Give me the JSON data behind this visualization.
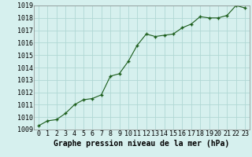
{
  "x": [
    0,
    1,
    2,
    3,
    4,
    5,
    6,
    7,
    8,
    9,
    10,
    11,
    12,
    13,
    14,
    15,
    16,
    17,
    18,
    19,
    20,
    21,
    22,
    23
  ],
  "y": [
    1009.3,
    1009.7,
    1009.8,
    1010.3,
    1011.0,
    1011.4,
    1011.5,
    1011.8,
    1013.3,
    1013.5,
    1014.5,
    1015.8,
    1016.7,
    1016.5,
    1016.6,
    1016.7,
    1017.2,
    1017.5,
    1018.1,
    1018.0,
    1018.0,
    1018.2,
    1019.0,
    1018.8
  ],
  "line_color": "#1a5c1a",
  "marker": "+",
  "bg_color": "#d6f0ee",
  "grid_color": "#b0d8d4",
  "xlabel": "Graphe pression niveau de la mer (hPa)",
  "xlabel_fontsize": 7,
  "tick_fontsize": 6,
  "ylim": [
    1009,
    1019
  ],
  "xlim": [
    -0.5,
    23.5
  ],
  "yticks": [
    1009,
    1010,
    1011,
    1012,
    1013,
    1014,
    1015,
    1016,
    1017,
    1018,
    1019
  ],
  "xticks": [
    0,
    1,
    2,
    3,
    4,
    5,
    6,
    7,
    8,
    9,
    10,
    11,
    12,
    13,
    14,
    15,
    16,
    17,
    18,
    19,
    20,
    21,
    22,
    23
  ]
}
